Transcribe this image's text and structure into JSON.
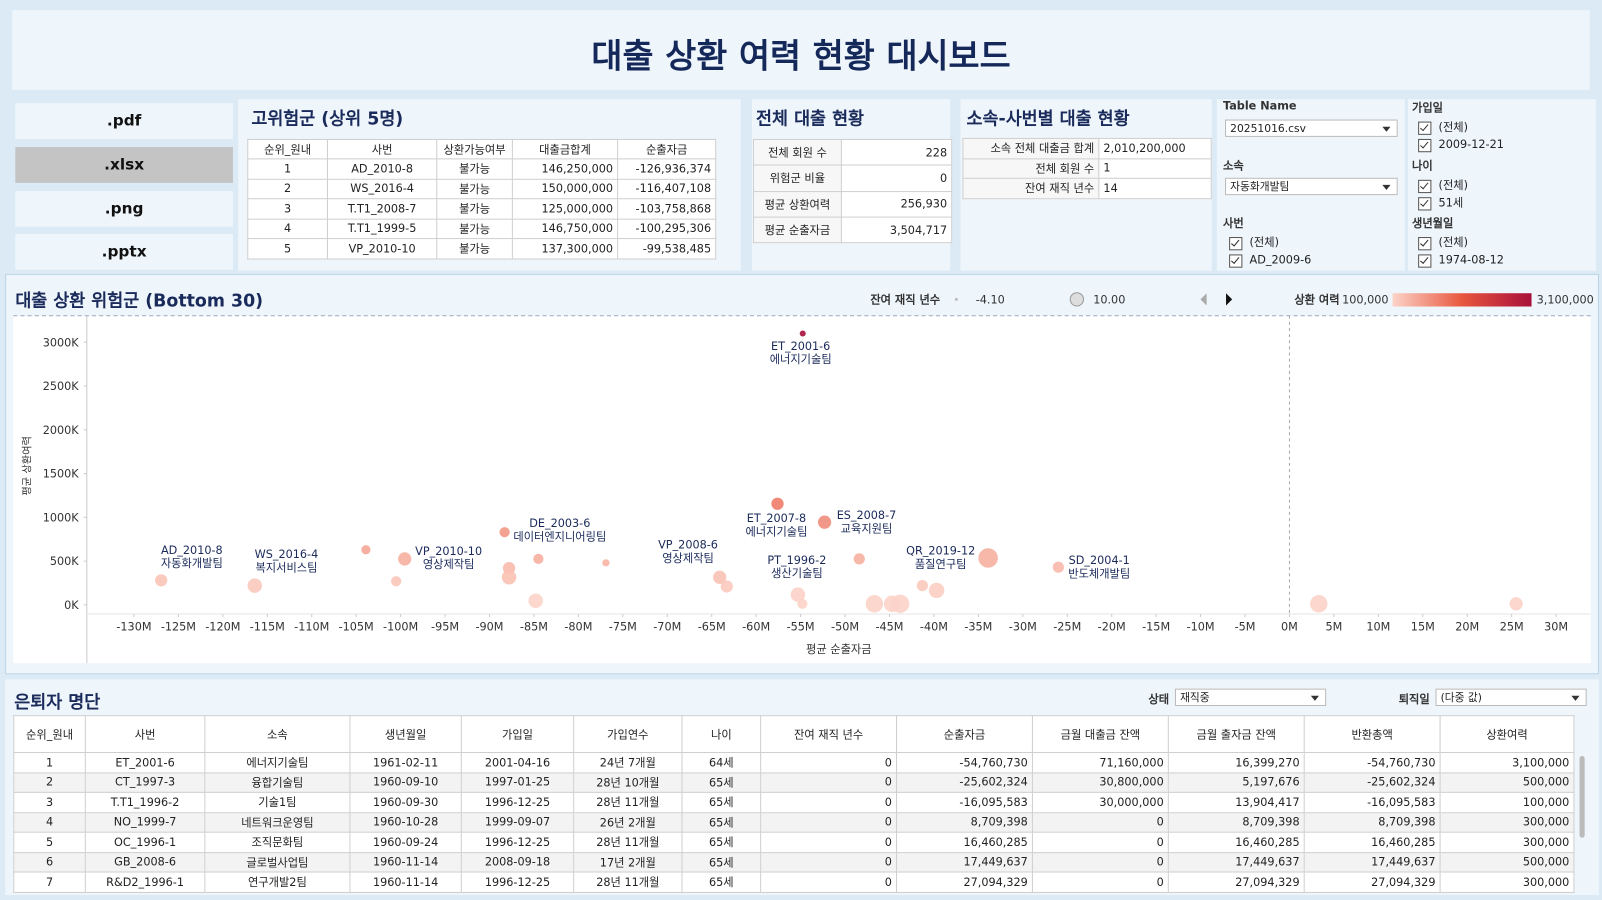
{
  "header": {
    "title": "대출 상환 여력 현황 대시보드"
  },
  "export_buttons": [
    ".pdf",
    ".xlsx",
    ".png",
    ".pptx"
  ],
  "high_risk": {
    "title": "고위험군 (상위 5명)",
    "columns": [
      "순위_원내",
      "사번",
      "상환가능여부",
      "대출금합계",
      "순출자금"
    ],
    "rows": [
      [
        "1",
        "AD_2010-8",
        "불가능",
        "146,250,000",
        "-126,936,374"
      ],
      [
        "2",
        "WS_2016-4",
        "불가능",
        "150,000,000",
        "-116,407,108"
      ],
      [
        "3",
        "T.T1_2008-7",
        "불가능",
        "125,000,000",
        "-103,758,868"
      ],
      [
        "4",
        "T.T1_1999-5",
        "불가능",
        "146,750,000",
        "-100,295,306"
      ],
      [
        "5",
        "VP_2010-10",
        "불가능",
        "137,300,000",
        "-99,538,485"
      ]
    ]
  },
  "loan_overview": {
    "title": "전체 대출 현황",
    "rows": [
      [
        "전체 회원 수",
        "228"
      ],
      [
        "위험군 비율",
        "0"
      ],
      [
        "평균 상환여력",
        "256,930"
      ],
      [
        "평균 순출자금",
        "3,504,717"
      ]
    ]
  },
  "dept_overview": {
    "title": "소속-사번별 대출 현황",
    "rows": [
      [
        "소속 전체 대출금 합계",
        "2,010,200,000"
      ],
      [
        "전체 회원 수",
        "1"
      ],
      [
        "잔여 재직 년수",
        "14"
      ]
    ]
  },
  "filters": [
    {
      "label": "Table Name",
      "selected": "20251016.csv"
    },
    {
      "label": "소속",
      "selected": "자동화개발팀"
    },
    {
      "label": "사번",
      "options": [
        "(전체)",
        "AD_2009-6"
      ]
    },
    {
      "label": "가입일",
      "options": [
        "(전체)",
        "2009-12-21"
      ]
    },
    {
      "label": "나이",
      "options": [
        "(전체)",
        "51세"
      ]
    },
    {
      "label": "생년월일",
      "options": [
        "(전체)",
        "1974-08-12"
      ]
    }
  ],
  "chart_data": {
    "type": "scatter",
    "title": "대출 상환 위험군 (Bottom 30)",
    "x_label": "평균 순출자금",
    "y_label": "평균 상환여력",
    "x": [
      -126936374,
      -116407108,
      -103900000,
      -100500000,
      -99538485,
      -88300000,
      -87800000,
      -87800000,
      -84500000,
      -84800000,
      -76900000,
      -64100000,
      -63300000,
      -57600000,
      -54760730,
      -55300000,
      -54800000,
      -52300000,
      -48400000,
      -46700000,
      -44700000,
      -43800000,
      -41300000,
      -39700000,
      -33900000,
      -26000000,
      3300000,
      25500000
    ],
    "values": [
      280000,
      220000,
      630000,
      270000,
      525000,
      830000,
      420000,
      315000,
      525000,
      47000,
      480000,
      315000,
      210000,
      1155000,
      3100000,
      117000,
      12000,
      945000,
      525000,
      12000,
      12000,
      12000,
      220000,
      165000,
      535000,
      430000,
      12000,
      12000
    ],
    "sizes": [
      2.5,
      4.5,
      -0.3,
      0.6,
      3.4,
      0.6,
      2.5,
      4.5,
      0.6,
      4.5,
      -2.2,
      3.4,
      2.5,
      2.5,
      -3.2,
      4.5,
      0.6,
      3.4,
      1.5,
      7.3,
      6.4,
      8.1,
      1.5,
      5.4,
      9.1,
      1.5,
      7.3,
      3.4
    ],
    "point_labels": [
      [
        "AD_2010-8",
        "자동화개발팀"
      ],
      [
        "WS_2016-4",
        "복지서비스팀"
      ],
      null,
      null,
      [
        "VP_2010-10",
        "영상제작팀"
      ],
      null,
      null,
      null,
      [
        "DE_2003-6",
        "데이터엔지니어링팀"
      ],
      null,
      null,
      [
        "VP_2008-6",
        "영상제작팀"
      ],
      null,
      [
        "ET_2007-8",
        "에너지기술팀"
      ],
      [
        "ET_2001-6",
        "에너지기술팀"
      ],
      [
        "PT_1996-2",
        "생산기술팀"
      ],
      null,
      [
        "ES_2008-7",
        "교육지원팀"
      ],
      null,
      null,
      null,
      null,
      null,
      [
        "QR_2019-12",
        "품질연구팀"
      ],
      null,
      [
        "SD_2004-1",
        "반도체개발팀"
      ],
      null,
      null
    ],
    "xlim": [
      -135300000,
      33900000
    ],
    "ylim": [
      -105000,
      3280000
    ],
    "xticks": [
      {
        "value": -130000000,
        "label": "-130M"
      },
      {
        "value": -125000000,
        "label": "-125M"
      },
      {
        "value": -120000000,
        "label": "-120M"
      },
      {
        "value": -115000000,
        "label": "-115M"
      },
      {
        "value": -110000000,
        "label": "-110M"
      },
      {
        "value": -105000000,
        "label": "-105M"
      },
      {
        "value": -100000000,
        "label": "-100M"
      },
      {
        "value": -95000000,
        "label": "-95M"
      },
      {
        "value": -90000000,
        "label": "-90M"
      },
      {
        "value": -85000000,
        "label": "-85M"
      },
      {
        "value": -80000000,
        "label": "-80M"
      },
      {
        "value": -75000000,
        "label": "-75M"
      },
      {
        "value": -70000000,
        "label": "-70M"
      },
      {
        "value": -65000000,
        "label": "-65M"
      },
      {
        "value": -60000000,
        "label": "-60M"
      },
      {
        "value": -55000000,
        "label": "-55M"
      },
      {
        "value": -50000000,
        "label": "-50M"
      },
      {
        "value": -45000000,
        "label": "-45M"
      },
      {
        "value": -40000000,
        "label": "-40M"
      },
      {
        "value": -35000000,
        "label": "-35M"
      },
      {
        "value": -30000000,
        "label": "-30M"
      },
      {
        "value": -25000000,
        "label": "-25M"
      },
      {
        "value": -20000000,
        "label": "-20M"
      },
      {
        "value": -15000000,
        "label": "-15M"
      },
      {
        "value": -10000000,
        "label": "-10M"
      },
      {
        "value": -5000000,
        "label": "-5M"
      },
      {
        "value": 0,
        "label": "0M"
      },
      {
        "value": 5000000,
        "label": "5M"
      },
      {
        "value": 10000000,
        "label": "10M"
      },
      {
        "value": 15000000,
        "label": "15M"
      },
      {
        "value": 20000000,
        "label": "20M"
      },
      {
        "value": 25000000,
        "label": "25M"
      },
      {
        "value": 30000000,
        "label": "30M"
      }
    ],
    "yticks": [
      {
        "value": 0,
        "label": "0K"
      },
      {
        "value": 500000,
        "label": "500K"
      },
      {
        "value": 1000000,
        "label": "1000K"
      },
      {
        "value": 1500000,
        "label": "1500K"
      },
      {
        "value": 2000000,
        "label": "2000K"
      },
      {
        "value": 2500000,
        "label": "2500K"
      },
      {
        "value": 3000000,
        "label": "3000K"
      }
    ],
    "size_legend": {
      "title": "잔여 재직 년수",
      "min": {
        "value": -4.1,
        "label": "-4.10"
      },
      "max": {
        "value": 10,
        "label": "10.00"
      }
    },
    "color_legend": {
      "title": "상환 여력",
      "min": {
        "value": 100000,
        "label": "100,000"
      },
      "max": {
        "value": 3100000,
        "label": "3,100,000"
      },
      "colors": [
        "#fcd3c8",
        "#e8573f",
        "#a8103a"
      ]
    }
  },
  "retirees": {
    "title": "은퇴자 명단",
    "filters": [
      {
        "label": "상태",
        "selected": "재직중"
      },
      {
        "label": "퇴직일",
        "selected": "(다중 값)"
      }
    ],
    "columns": [
      "순위_원내",
      "사번",
      "소속",
      "생년월일",
      "가입일",
      "가입연수",
      "나이",
      "잔여 재직 년수",
      "순출자금",
      "금월 대출금 잔액",
      "금월 출자금 잔액",
      "반환총액",
      "상환여력"
    ],
    "rows": [
      [
        "1",
        "ET_2001-6",
        "에너지기술팀",
        "1961-02-11",
        "2001-04-16",
        "24년 7개월",
        "64세",
        "0",
        "-54,760,730",
        "71,160,000",
        "16,399,270",
        "-54,760,730",
        "3,100,000"
      ],
      [
        "2",
        "CT_1997-3",
        "융합기술팀",
        "1960-09-10",
        "1997-01-25",
        "28년 10개월",
        "65세",
        "0",
        "-25,602,324",
        "30,800,000",
        "5,197,676",
        "-25,602,324",
        "500,000"
      ],
      [
        "3",
        "T.T1_1996-2",
        "기술1팀",
        "1960-09-30",
        "1996-12-25",
        "28년 11개월",
        "65세",
        "0",
        "-16,095,583",
        "30,000,000",
        "13,904,417",
        "-16,095,583",
        "100,000"
      ],
      [
        "4",
        "NO_1999-7",
        "네트워크운영팀",
        "1960-10-28",
        "1999-09-07",
        "26년 2개월",
        "65세",
        "0",
        "8,709,398",
        "0",
        "8,709,398",
        "8,709,398",
        "300,000"
      ],
      [
        "5",
        "OC_1996-1",
        "조직문화팀",
        "1960-09-24",
        "1996-12-25",
        "28년 11개월",
        "65세",
        "0",
        "16,460,285",
        "0",
        "16,460,285",
        "16,460,285",
        "300,000"
      ],
      [
        "6",
        "GB_2008-6",
        "글로벌사업팀",
        "1960-11-14",
        "2008-09-18",
        "17년 2개월",
        "65세",
        "0",
        "17,449,637",
        "0",
        "17,449,637",
        "17,449,637",
        "500,000"
      ],
      [
        "7",
        "R&D2_1996-1",
        "연구개발2팀",
        "1960-11-14",
        "1996-12-25",
        "28년 11개월",
        "65세",
        "0",
        "27,094,329",
        "0",
        "27,094,329",
        "27,094,329",
        "300,000"
      ]
    ]
  }
}
